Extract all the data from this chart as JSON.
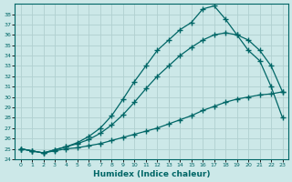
{
  "xlabel": "Humidex (Indice chaleur)",
  "bg_color": "#cce8e8",
  "grid_color": "#b0d0d0",
  "line_color": "#006666",
  "xlim": [
    -0.5,
    23.5
  ],
  "ylim": [
    24,
    39
  ],
  "yticks": [
    24,
    25,
    26,
    27,
    28,
    29,
    30,
    31,
    32,
    33,
    34,
    35,
    36,
    37,
    38
  ],
  "xticks": [
    0,
    1,
    2,
    3,
    4,
    5,
    6,
    7,
    8,
    9,
    10,
    11,
    12,
    13,
    14,
    15,
    16,
    17,
    18,
    19,
    20,
    21,
    22,
    23
  ],
  "curve1_x": [
    0,
    1,
    2,
    3,
    4,
    5,
    6,
    7,
    8,
    9,
    10,
    11,
    12,
    13,
    14,
    15,
    16,
    17,
    18,
    19,
    20,
    21,
    22,
    23
  ],
  "curve1_y": [
    25.0,
    24.8,
    24.6,
    24.8,
    25.0,
    25.1,
    25.3,
    25.5,
    25.8,
    26.1,
    26.4,
    26.7,
    27.0,
    27.4,
    27.8,
    28.2,
    28.7,
    29.1,
    29.5,
    29.8,
    30.0,
    30.2,
    30.3,
    30.5
  ],
  "curve2_x": [
    0,
    1,
    2,
    3,
    4,
    5,
    6,
    7,
    8,
    9,
    10,
    11,
    12,
    13,
    14,
    15,
    16,
    17,
    18,
    19,
    20,
    21,
    22,
    23
  ],
  "curve2_y": [
    25.0,
    24.8,
    24.6,
    24.9,
    25.2,
    25.5,
    25.9,
    26.5,
    27.3,
    28.3,
    29.5,
    30.8,
    32.0,
    33.0,
    34.0,
    34.8,
    35.5,
    36.0,
    36.2,
    36.0,
    35.5,
    34.5,
    33.0,
    30.5
  ],
  "curve3_x": [
    0,
    1,
    2,
    3,
    4,
    5,
    6,
    7,
    8,
    9,
    10,
    11,
    12,
    13,
    14,
    15,
    16,
    17,
    18,
    19,
    20,
    21,
    22,
    23
  ],
  "curve3_y": [
    25.0,
    24.8,
    24.6,
    24.9,
    25.2,
    25.6,
    26.2,
    27.0,
    28.2,
    29.8,
    31.5,
    33.0,
    34.5,
    35.5,
    36.5,
    37.2,
    38.5,
    38.8,
    37.5,
    36.0,
    34.5,
    33.5,
    31.0,
    28.0
  ]
}
